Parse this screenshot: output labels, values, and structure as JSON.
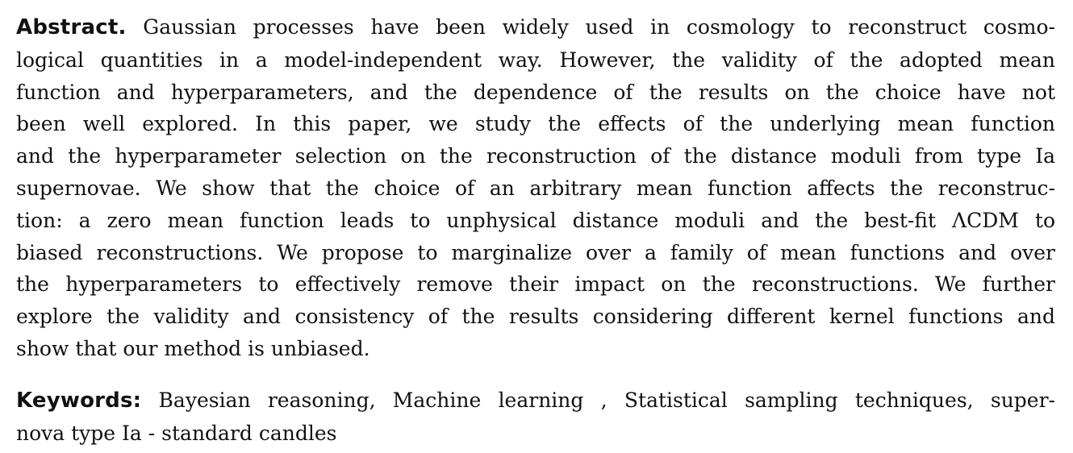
{
  "abstract": {
    "label": "Abstract.",
    "lines": [
      "Gaussian processes have been widely used in cosmology to reconstruct cosmo-",
      "logical quantities in a model-independent way. However, the validity of the adopted mean",
      "function and hyperparameters, and the dependence of the results on the choice have not",
      "been well explored. In this paper, we study the effects of the underlying mean function",
      "and the hyperparameter selection on the reconstruction of the distance moduli from type Ia",
      "supernovae. We show that the choice of an arbitrary mean function affects the reconstruc-",
      "tion: a zero mean function leads to unphysical distance moduli and the best-fit ΛCDM to",
      "biased reconstructions. We propose to marginalize over a family of mean functions and over",
      "the hyperparameters to effectively remove their impact on the reconstructions. We further",
      "explore the validity and consistency of the results considering different kernel functions and",
      "show that our method is unbiased."
    ]
  },
  "keywords": {
    "label": "Keywords:",
    "lines": [
      "Bayesian reasoning, Machine learning , Statistical sampling techniques, super-",
      "nova type Ia - standard candles"
    ]
  }
}
